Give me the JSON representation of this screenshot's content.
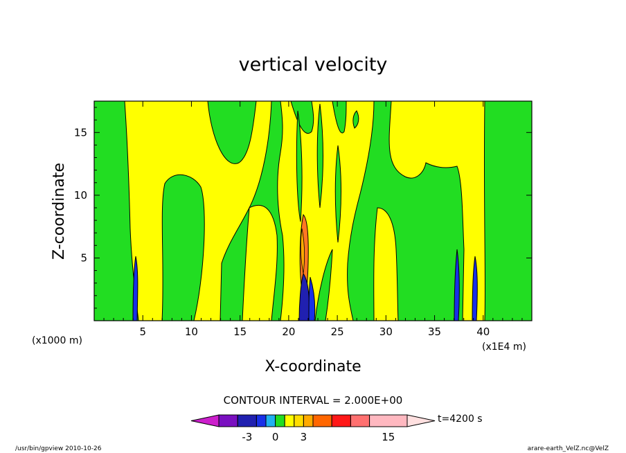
{
  "chart_data": {
    "type": "heatmap",
    "title": "vertical velocity",
    "xlabel": "X-coordinate",
    "ylabel": "Z-coordinate",
    "x_unit_left": "(x1000 m)",
    "x_unit_right": "(x1E4 m)",
    "xlim": [
      0,
      45
    ],
    "ylim": [
      0,
      17.5
    ],
    "xticks": [
      "5",
      "10",
      "15",
      "20",
      "25",
      "30",
      "35",
      "40"
    ],
    "yticks": [
      "5",
      "10",
      "15"
    ],
    "contour_interval": "CONTOUR INTERVAL = 2.000E+00",
    "time_label": "t=4200 s",
    "footer_left": "/usr/bin/gpview  2010-10-26",
    "footer_right": "arare-earth_VelZ.nc@VelZ",
    "colorbar": {
      "labels": [
        {
          "value": -3,
          "text": "-3"
        },
        {
          "value": 0,
          "text": "0"
        },
        {
          "value": 3,
          "text": "3"
        },
        {
          "value": 15,
          "text": "15"
        }
      ],
      "levels": [
        -8,
        -6,
        -4,
        -2,
        -1,
        0,
        1,
        2,
        3,
        4,
        6,
        8,
        10,
        14,
        16
      ],
      "colors": [
        "#cc1fcc",
        "#7a10c0",
        "#2020b0",
        "#1830e8",
        "#20b0f0",
        "#22dd22",
        "#ffff00",
        "#ffdd00",
        "#ffaa00",
        "#ff6600",
        "#ff1818",
        "#ff7070",
        "#ffb8c0",
        "#ffe0e0"
      ]
    },
    "fill_colors": {
      "positive_weak": "#ffff00",
      "negative_weak": "#22dd22",
      "positive_strong": "#ff7722",
      "line": "#000000"
    }
  }
}
